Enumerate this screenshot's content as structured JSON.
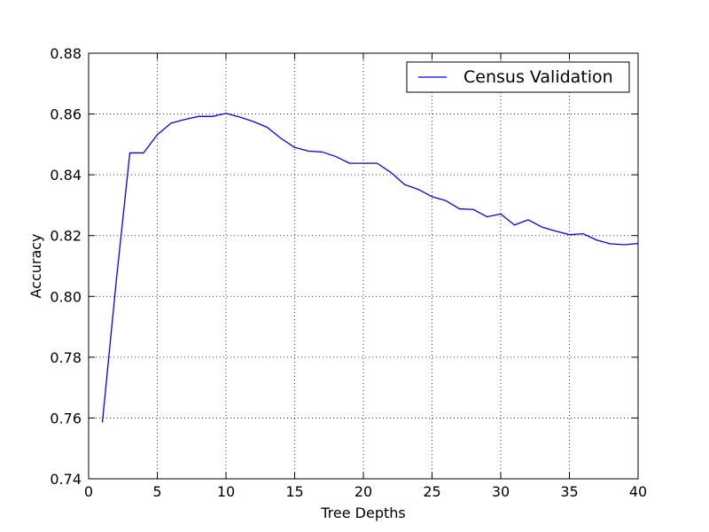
{
  "chart_data": {
    "type": "line",
    "title": "",
    "xlabel": "Tree Depths",
    "ylabel": "Accuracy",
    "xlim": [
      0,
      40
    ],
    "ylim": [
      0.74,
      0.88
    ],
    "x_ticks": [
      0,
      5,
      10,
      15,
      20,
      25,
      30,
      35,
      40
    ],
    "y_ticks": [
      0.74,
      0.76,
      0.78,
      0.8,
      0.82,
      0.84,
      0.86,
      0.88
    ],
    "x_tick_labels": [
      "0",
      "5",
      "10",
      "15",
      "20",
      "25",
      "30",
      "35",
      "40"
    ],
    "y_tick_labels": [
      "0.74",
      "0.76",
      "0.78",
      "0.80",
      "0.82",
      "0.84",
      "0.86",
      "0.88"
    ],
    "grid": true,
    "grid_style": "dotted",
    "legend": {
      "placement": "top-right",
      "entries": [
        {
          "label": "Census Validation",
          "color": "#0000ff"
        }
      ]
    },
    "series": [
      {
        "name": "Census Validation",
        "color": "#0000ff",
        "x": [
          1,
          2,
          3,
          4,
          5,
          6,
          7,
          8,
          9,
          10,
          11,
          12,
          13,
          14,
          15,
          16,
          17,
          18,
          19,
          20,
          21,
          22,
          23,
          24,
          25,
          26,
          27,
          28,
          29,
          30,
          31,
          32,
          33,
          34,
          35,
          36,
          37,
          38,
          39,
          40
        ],
        "y": [
          0.7585,
          0.8045,
          0.8472,
          0.8472,
          0.8532,
          0.857,
          0.8582,
          0.8592,
          0.8592,
          0.8602,
          0.859,
          0.8575,
          0.8556,
          0.852,
          0.849,
          0.8478,
          0.8475,
          0.846,
          0.8438,
          0.8438,
          0.8438,
          0.8408,
          0.8368,
          0.8352,
          0.8328,
          0.8315,
          0.8288,
          0.8286,
          0.8262,
          0.8271,
          0.8235,
          0.8252,
          0.8228,
          0.8215,
          0.8203,
          0.8206,
          0.8185,
          0.8173,
          0.817,
          0.8174
        ]
      }
    ]
  }
}
